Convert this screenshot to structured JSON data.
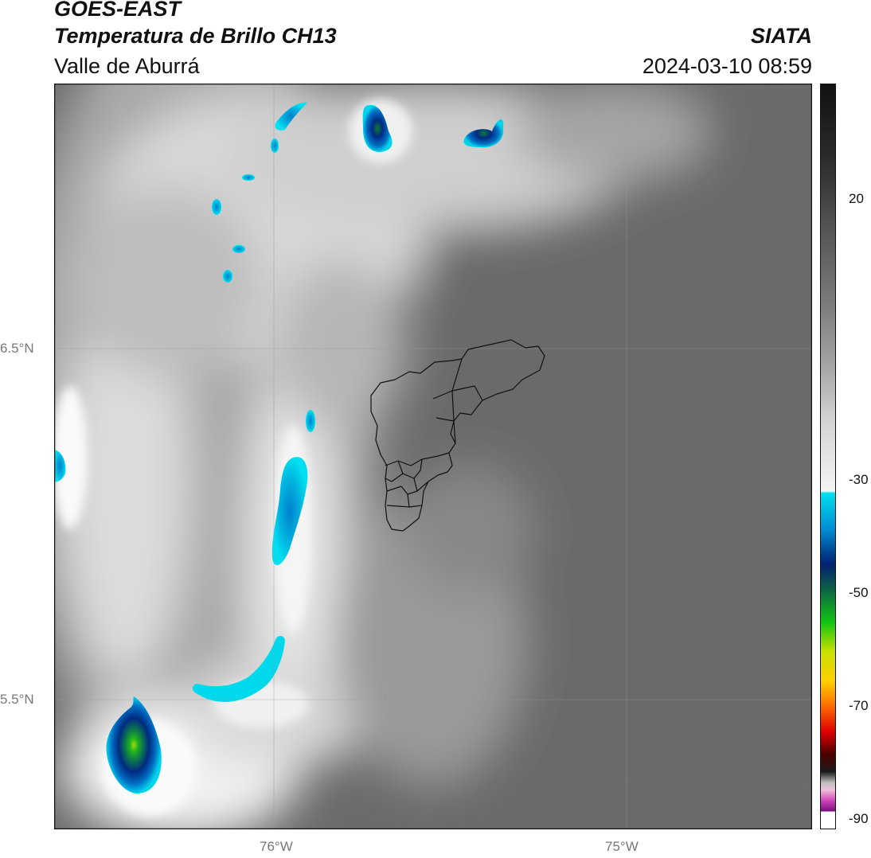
{
  "header": {
    "satellite": "GOES-EAST",
    "product": "Temperatura de Brillo CH13",
    "region": "Valle de Aburrá",
    "organization": "SIATA",
    "datetime": "2024-03-10 08:59"
  },
  "map": {
    "lat_range": [
      5.0,
      7.1
    ],
    "lon_range": [
      -76.62,
      -74.47
    ],
    "gridlines": true,
    "lat_ticks": [
      {
        "value": 6.5,
        "label": "6.5°N"
      },
      {
        "value": 5.5,
        "label": "5.5°N"
      }
    ],
    "lon_ticks": [
      {
        "value": -76.0,
        "label": "76°W"
      },
      {
        "value": -75.0,
        "label": "75°W"
      }
    ],
    "colors": {
      "background_gray": "#6b6b6b",
      "cold_cyan": "#00c8e0",
      "cold_blue": "#003a8c",
      "cold_green": "#1db31d"
    },
    "cold_cloud_cells": [
      {
        "lat": 6.95,
        "lon": -75.72,
        "level": "deep"
      },
      {
        "lat": 6.93,
        "lon": -75.35,
        "level": "deep"
      },
      {
        "lat": 6.98,
        "lon": -76.03,
        "level": "cold"
      },
      {
        "lat": 6.62,
        "lon": -76.1,
        "level": "cold"
      },
      {
        "lat": 6.15,
        "lon": -76.0,
        "level": "cold"
      },
      {
        "lat": 6.25,
        "lon": -76.6,
        "level": "cold"
      },
      {
        "lat": 5.35,
        "lon": -76.4,
        "level": "core"
      },
      {
        "lat": 5.5,
        "lon": -76.1,
        "level": "cold"
      }
    ]
  },
  "colorbar": {
    "ticks": [
      {
        "value": 20,
        "label": "20"
      },
      {
        "value": -30,
        "label": "-30"
      },
      {
        "value": -50,
        "label": "-50"
      },
      {
        "value": -70,
        "label": "-70"
      },
      {
        "value": -90,
        "label": "-90"
      }
    ]
  }
}
